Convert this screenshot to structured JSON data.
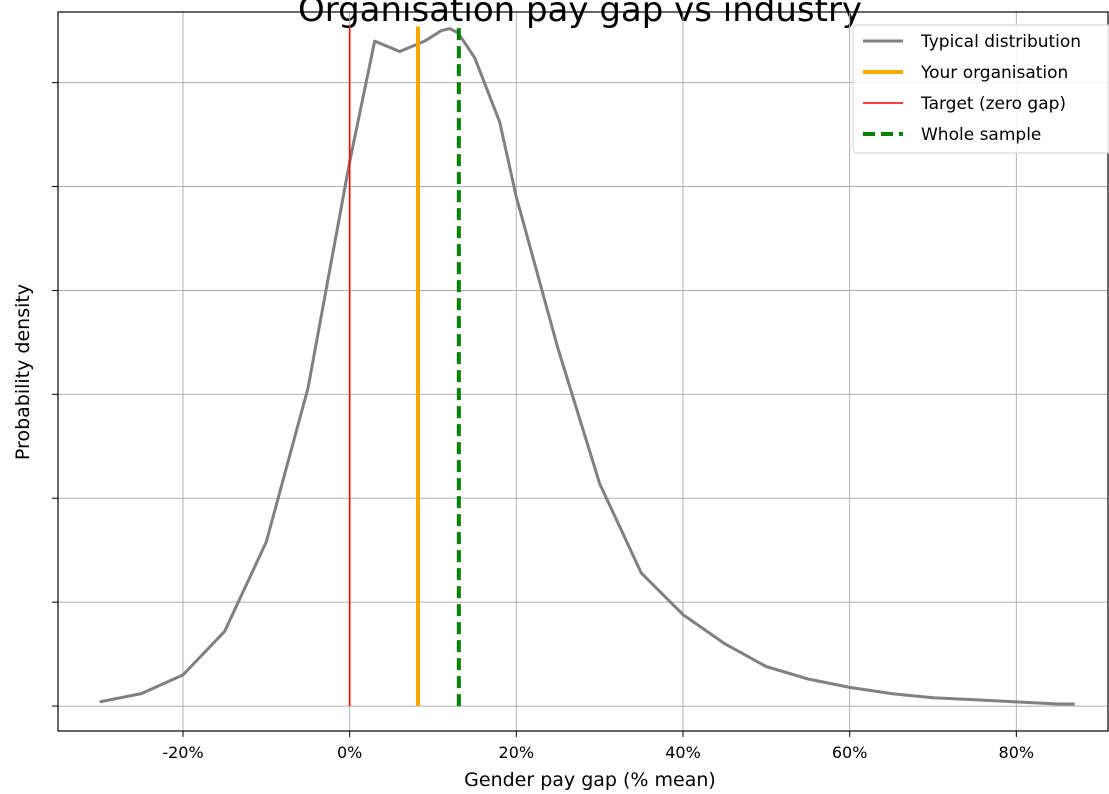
{
  "chart_data": {
    "type": "line",
    "title": "Organisation pay gap vs industry",
    "xlabel": "Gender pay gap (% mean)",
    "ylabel": "Probability density",
    "xlim": [
      -35,
      91
    ],
    "ylim": [
      -0.0012,
      0.0334
    ],
    "xticks": [
      -20,
      0,
      20,
      40,
      60,
      80
    ],
    "xtick_labels": [
      "-20%",
      "0%",
      "20%",
      "40%",
      "60%",
      "80%"
    ],
    "yticks": [
      0,
      0.005,
      0.01,
      0.015,
      0.02,
      0.025,
      0.03
    ],
    "grid": true,
    "legend_position": "top-right",
    "series": [
      {
        "name": "Typical distribution",
        "kind": "curve",
        "color": "#808080",
        "x": [
          -30,
          -25,
          -20,
          -15,
          -10,
          -5,
          0,
          3,
          6,
          9,
          11,
          12,
          13,
          15,
          18,
          20,
          25,
          30,
          35,
          40,
          45,
          50,
          55,
          60,
          65,
          70,
          75,
          80,
          85,
          87
        ],
        "values": [
          0.0002,
          0.0006,
          0.0015,
          0.0036,
          0.0079,
          0.0153,
          0.0262,
          0.032,
          0.0315,
          0.032,
          0.0325,
          0.0326,
          0.0324,
          0.0312,
          0.0281,
          0.0245,
          0.0172,
          0.0107,
          0.0064,
          0.0044,
          0.003,
          0.0019,
          0.0013,
          0.0009,
          0.0006,
          0.0004,
          0.0003,
          0.0002,
          0.0001,
          0.0001
        ]
      },
      {
        "name": "Your organisation",
        "kind": "vline",
        "color": "#FFA500",
        "x": 8.2,
        "ymin": 0,
        "ymax": 0.0327
      },
      {
        "name": "Target (zero gap)",
        "kind": "vline",
        "color": "#FF0000",
        "x": 0,
        "ymin": 0,
        "ymax": 0.0327
      },
      {
        "name": "Whole sample",
        "kind": "vline",
        "dashed": true,
        "color": "#008000",
        "x": 13.1,
        "ymin": 0,
        "ymax": 0.0327
      }
    ]
  }
}
